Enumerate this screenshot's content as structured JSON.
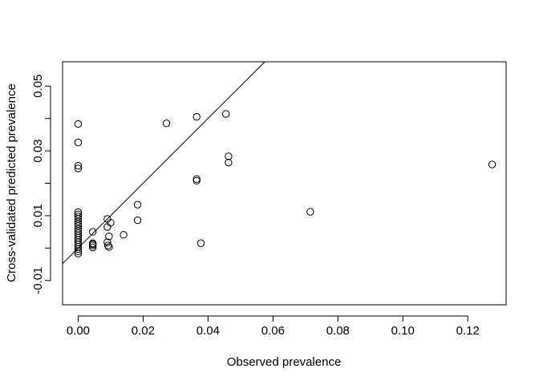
{
  "chart_data": {
    "type": "scatter",
    "title": "",
    "xlabel": "Observed prevalence",
    "ylabel": "Cross-validated predicted prevalence",
    "xlim": [
      -0.0048,
      0.1318
    ],
    "ylim": [
      -0.0175,
      0.0575
    ],
    "x_ticks": [
      0.0,
      0.02,
      0.04,
      0.06,
      0.08,
      0.1,
      0.12
    ],
    "x_tick_labels": [
      "0.00",
      "0.02",
      "0.04",
      "0.06",
      "0.08",
      "0.10",
      "0.12"
    ],
    "y_ticks": [
      -0.01,
      0.01,
      0.03,
      0.05
    ],
    "y_tick_labels": [
      "-0.01",
      "0.01",
      "0.03",
      "0.05"
    ],
    "y_minor_ticks": [
      0.0,
      0.02,
      0.04
    ],
    "grid": false,
    "legend": "none",
    "marker": "open-circle",
    "reference_line": {
      "intercept": 0.0,
      "slope": 1.0
    },
    "points": [
      {
        "x": 0.0,
        "y": 0.0383
      },
      {
        "x": 0.0,
        "y": 0.0326
      },
      {
        "x": 0.0,
        "y": 0.0254
      },
      {
        "x": 0.0,
        "y": 0.0246
      },
      {
        "x": 0.0,
        "y": 0.0111
      },
      {
        "x": 0.0,
        "y": 0.0104
      },
      {
        "x": 0.0,
        "y": 0.0097
      },
      {
        "x": 0.0,
        "y": 0.009
      },
      {
        "x": 0.0,
        "y": 0.0082
      },
      {
        "x": 0.0,
        "y": 0.0075
      },
      {
        "x": 0.0,
        "y": 0.0068
      },
      {
        "x": 0.0,
        "y": 0.006
      },
      {
        "x": 0.0,
        "y": 0.0053
      },
      {
        "x": 0.0,
        "y": 0.0046
      },
      {
        "x": 0.0,
        "y": 0.0039
      },
      {
        "x": 0.0,
        "y": 0.0032
      },
      {
        "x": 0.0,
        "y": 0.0025
      },
      {
        "x": 0.0,
        "y": 0.0018
      },
      {
        "x": 0.0,
        "y": 0.0011
      },
      {
        "x": 0.0,
        "y": 0.0004
      },
      {
        "x": 0.0,
        "y": -0.0003
      },
      {
        "x": 0.0,
        "y": -0.001
      },
      {
        "x": 0.0,
        "y": -0.0017
      },
      {
        "x": 0.0045,
        "y": 0.005
      },
      {
        "x": 0.0045,
        "y": 0.0015
      },
      {
        "x": 0.0045,
        "y": 0.0008
      },
      {
        "x": 0.0045,
        "y": 0.0002
      },
      {
        "x": 0.0045,
        "y": 0.0012
      },
      {
        "x": 0.009,
        "y": 0.009
      },
      {
        "x": 0.009,
        "y": 0.0065
      },
      {
        "x": 0.009,
        "y": 0.0018
      },
      {
        "x": 0.0092,
        "y": 0.0008
      },
      {
        "x": 0.0095,
        "y": 0.0036
      },
      {
        "x": 0.0095,
        "y": 0.0003
      },
      {
        "x": 0.01,
        "y": 0.0078
      },
      {
        "x": 0.014,
        "y": 0.0041
      },
      {
        "x": 0.0183,
        "y": 0.0134
      },
      {
        "x": 0.0183,
        "y": 0.0086
      },
      {
        "x": 0.0272,
        "y": 0.0385
      },
      {
        "x": 0.0365,
        "y": 0.0405
      },
      {
        "x": 0.0365,
        "y": 0.0213
      },
      {
        "x": 0.0365,
        "y": 0.0208
      },
      {
        "x": 0.0378,
        "y": 0.0015
      },
      {
        "x": 0.0455,
        "y": 0.0414
      },
      {
        "x": 0.0463,
        "y": 0.0283
      },
      {
        "x": 0.0463,
        "y": 0.0264
      },
      {
        "x": 0.0715,
        "y": 0.0112
      },
      {
        "x": 0.1275,
        "y": 0.0258
      }
    ]
  }
}
